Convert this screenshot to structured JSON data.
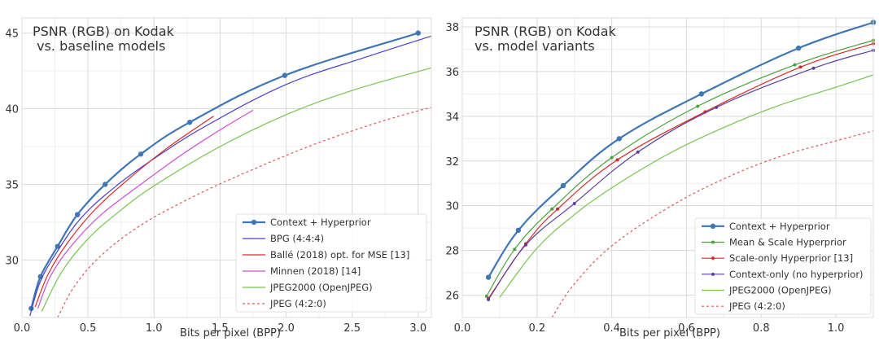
{
  "chart_data": [
    {
      "type": "line",
      "title": "PSNR (RGB) on Kodak\n vs. baseline models",
      "title_lines": [
        "PSNR (RGB) on Kodak",
        " vs. baseline models"
      ],
      "xlabel": "Bits per pixel (BPP)",
      "ylabel": "",
      "xlim": [
        0.0,
        3.1
      ],
      "ylim": [
        26.2,
        46.0
      ],
      "xticks": [
        0.0,
        0.5,
        1.0,
        1.5,
        2.0,
        2.5,
        3.0
      ],
      "xtick_labels": [
        "0.0",
        "0.5",
        "1.0",
        "1.5",
        "2.0",
        "2.5",
        "3.0"
      ],
      "yticks": [
        30,
        35,
        40,
        45
      ],
      "ytick_labels": [
        "30",
        "35",
        "40",
        "45"
      ],
      "grid": true,
      "legend_position": "lower-right",
      "series": [
        {
          "name": "Context + Hyperprior",
          "color": "#3f76b4",
          "style": "solid-marker",
          "x": [
            0.07,
            0.14,
            0.27,
            0.42,
            0.63,
            0.9,
            1.27,
            1.99,
            3.0
          ],
          "y": [
            26.8,
            28.9,
            30.9,
            33.0,
            35.0,
            37.0,
            39.1,
            42.2,
            45.0
          ]
        },
        {
          "name": "BPG (4:4:4)",
          "color": "#4a3fd0",
          "style": "solid",
          "x": [
            0.06,
            0.14,
            0.27,
            0.45,
            0.7,
            1.0,
            1.4,
            2.0,
            2.6,
            3.1
          ],
          "y": [
            26.3,
            28.6,
            30.6,
            32.8,
            34.8,
            36.7,
            38.9,
            41.6,
            43.4,
            44.8
          ]
        },
        {
          "name": "Ballé (2018) opt. for MSE [13]",
          "color": "#d42a2a",
          "style": "solid",
          "x": [
            0.1,
            0.2,
            0.35,
            0.55,
            0.8,
            1.1,
            1.45
          ],
          "y": [
            26.9,
            29.1,
            31.2,
            33.3,
            35.3,
            37.4,
            39.5
          ]
        },
        {
          "name": "Minnen (2018) [14]",
          "color": "#cc4fd1",
          "style": "solid",
          "x": [
            0.12,
            0.22,
            0.38,
            0.6,
            0.9,
            1.2,
            1.5,
            1.75
          ],
          "y": [
            26.8,
            29.0,
            31.0,
            33.0,
            35.0,
            36.9,
            38.6,
            39.9
          ]
        },
        {
          "name": "JPEG2000 (OpenJPEG)",
          "color": "#78c450",
          "style": "solid",
          "x": [
            0.15,
            0.3,
            0.5,
            0.75,
            1.0,
            1.5,
            2.0,
            2.5,
            3.1
          ],
          "y": [
            26.6,
            29.2,
            31.4,
            33.3,
            34.9,
            37.5,
            39.6,
            41.2,
            42.7
          ]
        },
        {
          "name": "JPEG (4:2:0)",
          "color": "#e05a5a",
          "style": "dashed",
          "x": [
            0.27,
            0.4,
            0.6,
            0.9,
            1.3,
            1.7,
            2.2,
            2.7,
            3.1
          ],
          "y": [
            26.2,
            28.3,
            30.3,
            32.3,
            34.2,
            35.8,
            37.6,
            39.1,
            40.1
          ]
        }
      ]
    },
    {
      "type": "line",
      "title": "PSNR (RGB) on Kodak\nvs. model variants",
      "title_lines": [
        "PSNR (RGB) on Kodak",
        "vs. model variants"
      ],
      "xlabel": "Bits per pixel (BPP)",
      "ylabel": "",
      "xlim": [
        0.0,
        1.1
      ],
      "ylim": [
        25.0,
        38.4
      ],
      "xticks": [
        0.0,
        0.2,
        0.4,
        0.6,
        0.8,
        1.0
      ],
      "xtick_labels": [
        "0.0",
        "0.2",
        "0.4",
        "0.6",
        "0.8",
        "1.0"
      ],
      "yticks": [
        26,
        28,
        30,
        32,
        34,
        36,
        38
      ],
      "ytick_labels": [
        "26",
        "28",
        "30",
        "32",
        "34",
        "36",
        "38"
      ],
      "grid": true,
      "legend_position": "lower-right",
      "series": [
        {
          "name": "Context + Hyperprior",
          "color": "#3f76b4",
          "style": "solid-marker",
          "x": [
            0.07,
            0.15,
            0.27,
            0.42,
            0.64,
            0.9,
            1.1
          ],
          "y": [
            26.8,
            28.9,
            30.9,
            33.0,
            35.0,
            37.05,
            38.2
          ]
        },
        {
          "name": "Mean & Scale Hyperprior",
          "color": "#4aa13c",
          "style": "solid-marker-small",
          "x": [
            0.065,
            0.14,
            0.24,
            0.4,
            0.63,
            0.89,
            1.1
          ],
          "y": [
            25.95,
            28.05,
            29.85,
            32.15,
            34.45,
            36.3,
            37.4
          ]
        },
        {
          "name": "Scale-only Hyperprior [13]",
          "color": "#d42a2a",
          "style": "solid-marker-small",
          "x": [
            0.07,
            0.17,
            0.255,
            0.415,
            0.65,
            0.905,
            1.1
          ],
          "y": [
            25.85,
            28.3,
            29.85,
            32.05,
            34.2,
            36.2,
            37.25
          ]
        },
        {
          "name": "Context-only (no hyperprior)",
          "color": "#5c3fa0",
          "style": "solid-marker-small",
          "x": [
            0.07,
            0.17,
            0.3,
            0.47,
            0.68,
            0.94,
            1.1
          ],
          "y": [
            25.8,
            28.25,
            30.1,
            32.4,
            34.4,
            36.15,
            36.95
          ]
        },
        {
          "name": "JPEG2000 (OpenJPEG)",
          "color": "#78c450",
          "style": "solid",
          "x": [
            0.1,
            0.2,
            0.3,
            0.4,
            0.55,
            0.7,
            0.85,
            1.0,
            1.1
          ],
          "y": [
            25.9,
            28.1,
            29.6,
            30.8,
            32.3,
            33.5,
            34.5,
            35.3,
            35.85
          ]
        },
        {
          "name": "JPEG (4:2:0)",
          "color": "#e05a5a",
          "style": "dashed",
          "x": [
            0.24,
            0.3,
            0.4,
            0.55,
            0.7,
            0.85,
            1.0,
            1.1
          ],
          "y": [
            25.0,
            26.5,
            28.2,
            29.9,
            31.2,
            32.2,
            32.9,
            33.35
          ]
        }
      ]
    }
  ]
}
